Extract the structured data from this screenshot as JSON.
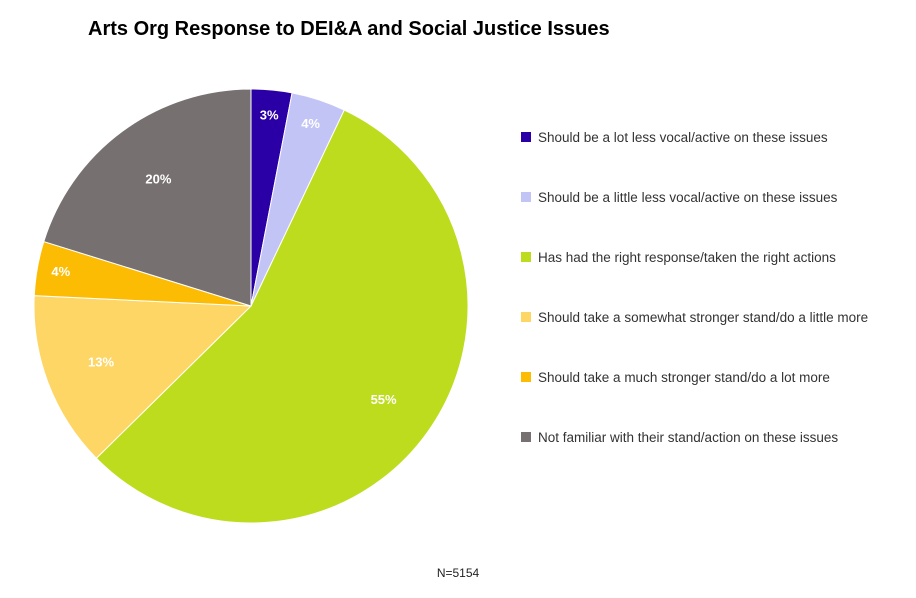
{
  "chart_data": {
    "type": "pie",
    "title": "Arts Org Response to DEI&A and Social Justice Issues",
    "footnote": "N=5154",
    "legend_position": "right",
    "slices": [
      {
        "label": "Should be a lot less vocal/active on these issues",
        "value": 3,
        "value_label": "3%",
        "color": "#2a00a6"
      },
      {
        "label": "Should be a little less vocal/active on these issues",
        "value": 4,
        "value_label": "4%",
        "color": "#c3c4f6"
      },
      {
        "label": "Has had the right response/taken the right actions",
        "value": 55,
        "value_label": "55%",
        "color": "#bedc1e"
      },
      {
        "label": "Should take a somewhat stronger stand/do a little more",
        "value": 13,
        "value_label": "13%",
        "color": "#fed666"
      },
      {
        "label": "Should take a much stronger stand/do a lot more",
        "value": 4,
        "value_label": "4%",
        "color": "#fcbc04"
      },
      {
        "label": "Not familiar with their stand/action on these issues",
        "value": 20,
        "value_label": "20%",
        "color": "#777070"
      }
    ]
  }
}
